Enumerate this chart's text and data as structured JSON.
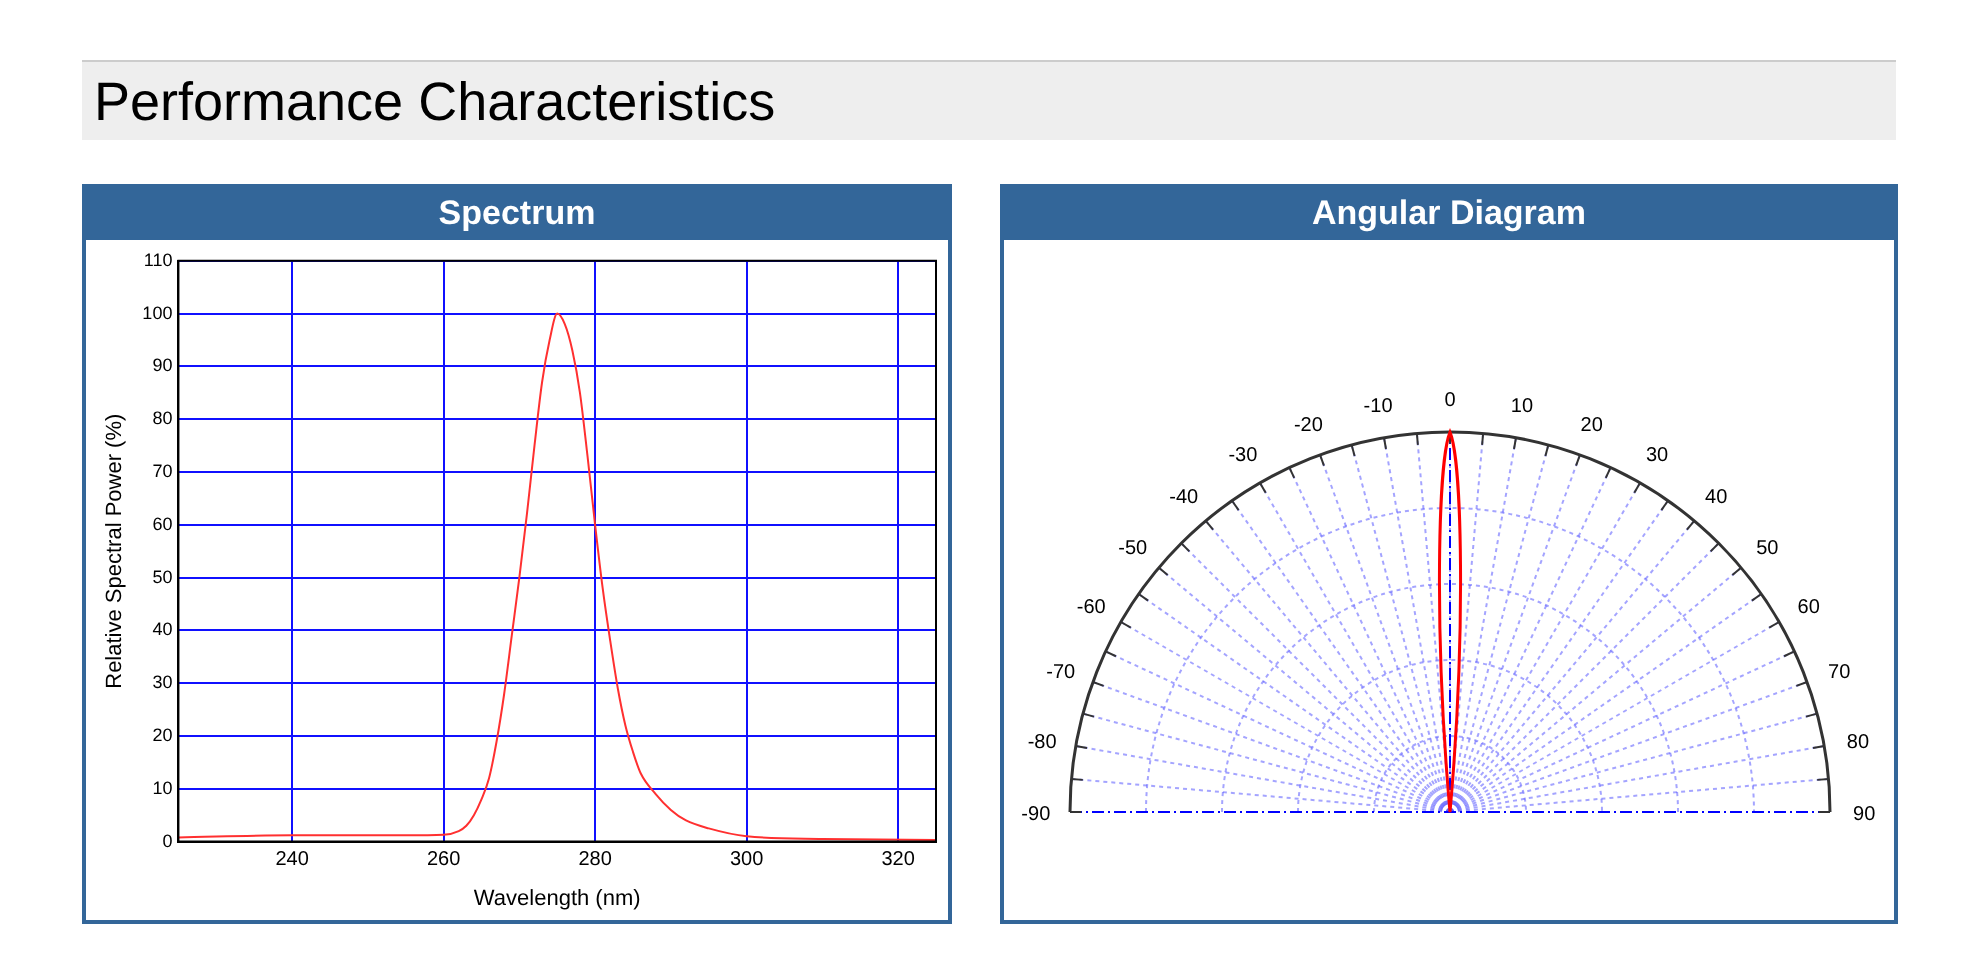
{
  "chart_data": [
    {
      "type": "line",
      "title": "Spectrum",
      "annotations": [
        "Performance Characteristics"
      ],
      "xlabel": "Wavelength (nm)",
      "ylabel": "Relative Spectral Power (%)",
      "x": [
        225,
        240,
        255,
        260,
        262,
        263,
        264,
        265,
        266,
        267,
        268,
        269,
        270,
        271,
        272,
        273,
        274,
        275,
        276,
        277,
        278,
        279,
        280,
        281,
        282,
        283,
        284,
        285,
        286,
        288,
        290,
        292,
        295,
        300,
        310,
        325
      ],
      "values": [
        0.8,
        1.2,
        1.2,
        1.3,
        2,
        3,
        5,
        8,
        12,
        19,
        28,
        39,
        50,
        62,
        75,
        87,
        95,
        100,
        98,
        93,
        85,
        73,
        60,
        48,
        38,
        29,
        22,
        17,
        13,
        9,
        6,
        4,
        2.5,
        1,
        0.5,
        0.3
      ],
      "color": "#ff3030",
      "xlim": [
        225,
        325
      ],
      "xticks": [
        240,
        260,
        280,
        300,
        320
      ],
      "ylim": [
        0,
        110
      ],
      "yticks": [
        0,
        10,
        20,
        30,
        40,
        50,
        60,
        70,
        80,
        90,
        100,
        110
      ],
      "grid": true
    },
    {
      "type": "other",
      "title": "Angular Diagram",
      "annotations": [
        "-90",
        "-80",
        "-70",
        "-60",
        "-50",
        "-40",
        "-30",
        "-20",
        "-10",
        "0",
        "10",
        "20",
        "30",
        "40",
        "50",
        "60",
        "70",
        "80",
        "90"
      ]
    }
  ]
}
